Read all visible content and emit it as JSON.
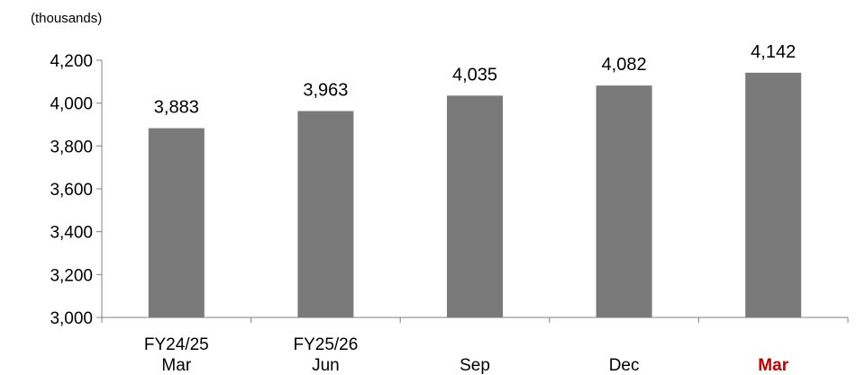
{
  "chart_data": {
    "type": "bar",
    "unit_label": "(thousands)",
    "categories": [
      [
        "FY24/25",
        "Mar"
      ],
      [
        "FY25/26",
        "Jun"
      ],
      [
        "",
        "Sep"
      ],
      [
        "",
        "Dec"
      ],
      [
        "",
        "Mar"
      ]
    ],
    "values": [
      3883,
      3963,
      4035,
      4082,
      4142
    ],
    "value_labels": [
      "3,883",
      "3,963",
      "4,035",
      "4,082",
      "4,142"
    ],
    "ylim": [
      3000,
      4200
    ],
    "yticks": [
      3000,
      3200,
      3400,
      3600,
      3800,
      4000,
      4200
    ],
    "ytick_labels": [
      "3,000",
      "3,200",
      "3,400",
      "3,600",
      "3,800",
      "4,000",
      "4,200"
    ],
    "highlight_index": 4,
    "grid": false,
    "colors": {
      "bar": "#7a7a7a",
      "axis": "#808080",
      "highlight_text": "#c00000"
    }
  }
}
